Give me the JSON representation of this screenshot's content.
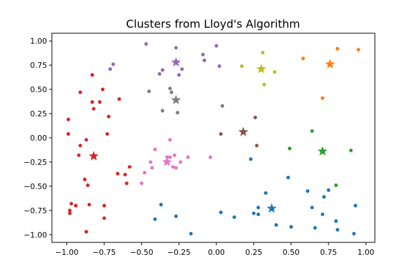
{
  "chart_data": {
    "type": "scatter",
    "title": "Clusters from Lloyd's Algorithm",
    "xlabel": "",
    "ylabel": "",
    "xlim": [
      -1.1,
      1.06
    ],
    "ylim": [
      -1.08,
      1.08
    ],
    "xticks": [
      -1.0,
      -0.75,
      -0.5,
      -0.25,
      0.0,
      0.25,
      0.5,
      0.75,
      1.0
    ],
    "yticks": [
      -1.0,
      -0.75,
      -0.5,
      -0.25,
      0.0,
      0.25,
      0.5,
      0.75,
      1.0
    ],
    "xtick_labels": [
      "−1.00",
      "−0.75",
      "−0.50",
      "−0.25",
      "0.00",
      "0.25",
      "0.50",
      "0.75",
      "1.00"
    ],
    "ytick_labels": [
      "−1.00",
      "−0.75",
      "−0.50",
      "−0.25",
      "0.00",
      "0.25",
      "0.50",
      "0.75",
      "1.00"
    ],
    "grid": false,
    "legend": false,
    "series": [
      {
        "color": "#1f77b4",
        "centroid": [
          0.37,
          -0.73
        ],
        "points": [
          [
            -0.37,
            -0.69
          ],
          [
            -0.41,
            -0.84
          ],
          [
            -0.27,
            -0.81
          ],
          [
            -0.17,
            -0.99
          ],
          [
            0.03,
            -0.77
          ],
          [
            0.12,
            -0.82
          ],
          [
            0.23,
            -0.22
          ],
          [
            0.25,
            -0.78
          ],
          [
            0.28,
            -0.72
          ],
          [
            0.28,
            -0.79
          ],
          [
            0.33,
            -0.57
          ],
          [
            0.4,
            -0.9
          ],
          [
            0.48,
            -0.41
          ],
          [
            0.5,
            -0.92
          ],
          [
            0.61,
            -0.55
          ],
          [
            0.64,
            -0.72
          ],
          [
            0.66,
            -0.93
          ],
          [
            0.71,
            -0.79
          ],
          [
            0.72,
            -0.61
          ],
          [
            0.75,
            -0.54
          ],
          [
            0.8,
            -0.86
          ],
          [
            0.81,
            -0.95
          ],
          [
            0.92,
            -0.99
          ],
          [
            0.93,
            -0.7
          ]
        ]
      },
      {
        "color": "#ff7f0e",
        "centroid": [
          0.76,
          0.76
        ],
        "points": [
          [
            0.58,
            0.82
          ],
          [
            0.71,
            0.41
          ],
          [
            0.81,
            0.92
          ],
          [
            0.95,
            0.91
          ]
        ]
      },
      {
        "color": "#2ca02c",
        "centroid": [
          0.71,
          -0.14
        ],
        "points": [
          [
            0.49,
            -0.11
          ],
          [
            0.64,
            0.07
          ],
          [
            0.8,
            -0.49
          ],
          [
            0.9,
            -0.13
          ]
        ]
      },
      {
        "color": "#d62728",
        "centroid": [
          -0.82,
          -0.19
        ],
        "points": [
          [
            -0.99,
            0.19
          ],
          [
            -0.99,
            0.04
          ],
          [
            -0.98,
            -0.78
          ],
          [
            -0.98,
            -0.75
          ],
          [
            -0.97,
            -0.68
          ],
          [
            -0.94,
            -0.7
          ],
          [
            -0.92,
            -0.18
          ],
          [
            -0.91,
            -0.08
          ],
          [
            -0.91,
            0.47
          ],
          [
            -0.88,
            -0.43
          ],
          [
            -0.87,
            -0.02
          ],
          [
            -0.86,
            -0.49
          ],
          [
            -0.85,
            -0.69
          ],
          [
            -0.87,
            -0.97
          ],
          [
            -0.83,
            0.65
          ],
          [
            -0.83,
            0.37
          ],
          [
            -0.82,
            0.3
          ],
          [
            -0.78,
            0.37
          ],
          [
            -0.76,
            0.5
          ],
          [
            -0.75,
            -0.7
          ],
          [
            -0.75,
            -0.83
          ],
          [
            -0.72,
            0.22
          ],
          [
            -0.73,
            0.04
          ],
          [
            -0.66,
            -0.37
          ],
          [
            -0.65,
            0.4
          ],
          [
            -0.61,
            -0.38
          ],
          [
            -0.6,
            -0.47
          ],
          [
            -0.58,
            -0.3
          ]
        ]
      },
      {
        "color": "#9467bd",
        "centroid": [
          -0.27,
          0.78
        ],
        "points": [
          [
            -0.47,
            0.97
          ],
          [
            -0.38,
            0.66
          ],
          [
            -0.36,
            0.7
          ],
          [
            -0.27,
            0.93
          ],
          [
            -0.23,
            0.71
          ],
          [
            -0.25,
            0.65
          ],
          [
            -0.09,
            0.86
          ],
          [
            -0.08,
            0.8
          ],
          [
            0.0,
            0.95
          ],
          [
            0.02,
            0.74
          ],
          [
            -0.69,
            0.76
          ],
          [
            -0.71,
            0.71
          ]
        ]
      },
      {
        "color": "#8c564b",
        "centroid": [
          0.18,
          0.06
        ],
        "points": [
          [
            0.03,
            0.04
          ],
          [
            0.26,
            0.21
          ],
          [
            0.27,
            -0.08
          ]
        ]
      },
      {
        "color": "#e377c2",
        "centroid": [
          -0.33,
          -0.25
        ],
        "points": [
          [
            -0.5,
            -0.47
          ],
          [
            -0.48,
            -0.36
          ],
          [
            -0.44,
            -0.25
          ],
          [
            -0.41,
            -0.12
          ],
          [
            -0.33,
            -0.2
          ],
          [
            -0.31,
            -0.02
          ],
          [
            -0.29,
            -0.3
          ],
          [
            -0.28,
            -0.18
          ],
          [
            -0.24,
            -0.25
          ],
          [
            -0.19,
            -0.2
          ],
          [
            -0.04,
            -0.2
          ],
          [
            -0.43,
            -0.31
          ],
          [
            -0.31,
            -0.2
          ],
          [
            -0.27,
            -0.31
          ]
        ]
      },
      {
        "color": "#7f7f7f",
        "centroid": [
          -0.27,
          0.39
        ],
        "points": [
          [
            -0.45,
            0.48
          ],
          [
            -0.36,
            0.28
          ],
          [
            -0.31,
            0.51
          ],
          [
            -0.3,
            0.47
          ],
          [
            -0.26,
            0.26
          ],
          [
            0.04,
            0.33
          ]
        ]
      },
      {
        "color": "#bcbd22",
        "centroid": [
          0.3,
          0.71
        ],
        "points": [
          [
            0.17,
            0.74
          ],
          [
            0.31,
            0.88
          ],
          [
            0.32,
            0.55
          ],
          [
            0.39,
            0.68
          ]
        ]
      }
    ]
  }
}
